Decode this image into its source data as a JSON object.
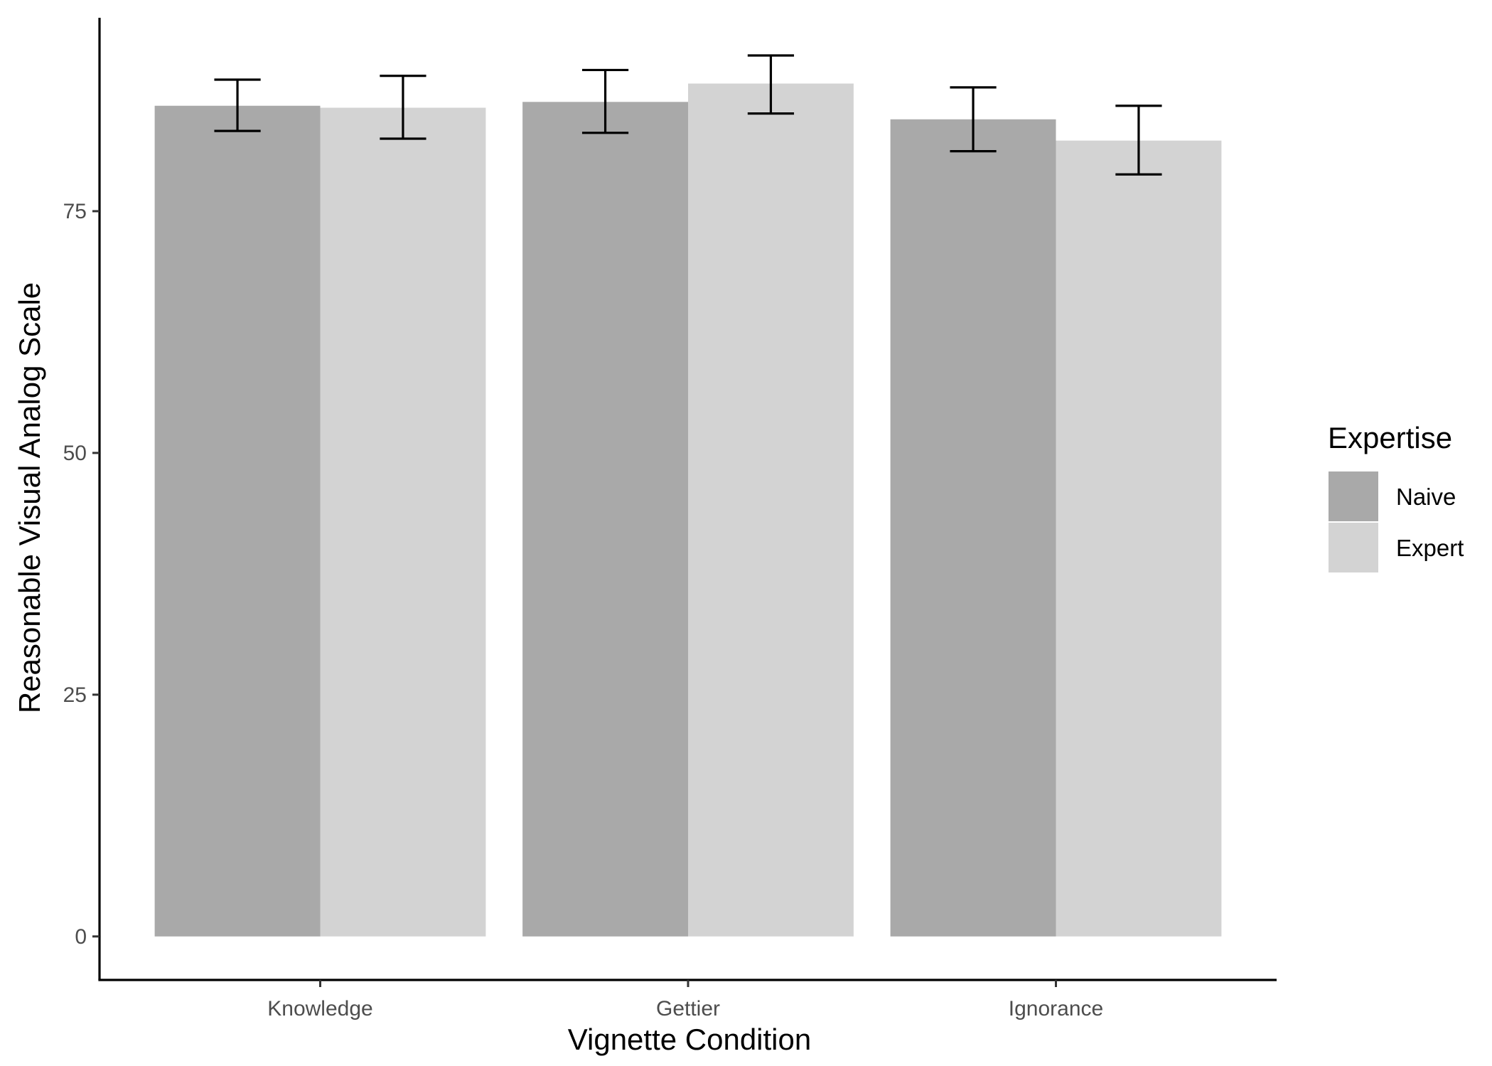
{
  "chart_data": {
    "type": "bar",
    "title": "",
    "xlabel": "Vignette Condition",
    "ylabel": "Reasonable Visual Analog Scale",
    "categories": [
      "Knowledge",
      "Gettier",
      "Ignorance"
    ],
    "series": [
      {
        "name": "Naive",
        "color": "#a9a9a9",
        "values": [
          85.9,
          86.3,
          84.5
        ],
        "error_low": [
          83.3,
          83.1,
          81.2
        ],
        "error_high": [
          88.6,
          89.6,
          87.8
        ]
      },
      {
        "name": "Expert",
        "color": "#d3d3d3",
        "values": [
          85.7,
          88.2,
          82.3
        ],
        "error_low": [
          82.5,
          85.1,
          78.8
        ],
        "error_high": [
          89.0,
          91.1,
          85.9
        ]
      }
    ],
    "ylim": [
      -4.5,
      95
    ],
    "yticks": [
      0,
      25,
      50,
      75
    ],
    "grid": false,
    "legend": {
      "title": "Expertise",
      "position": "right",
      "entries": [
        "Naive",
        "Expert"
      ]
    }
  }
}
